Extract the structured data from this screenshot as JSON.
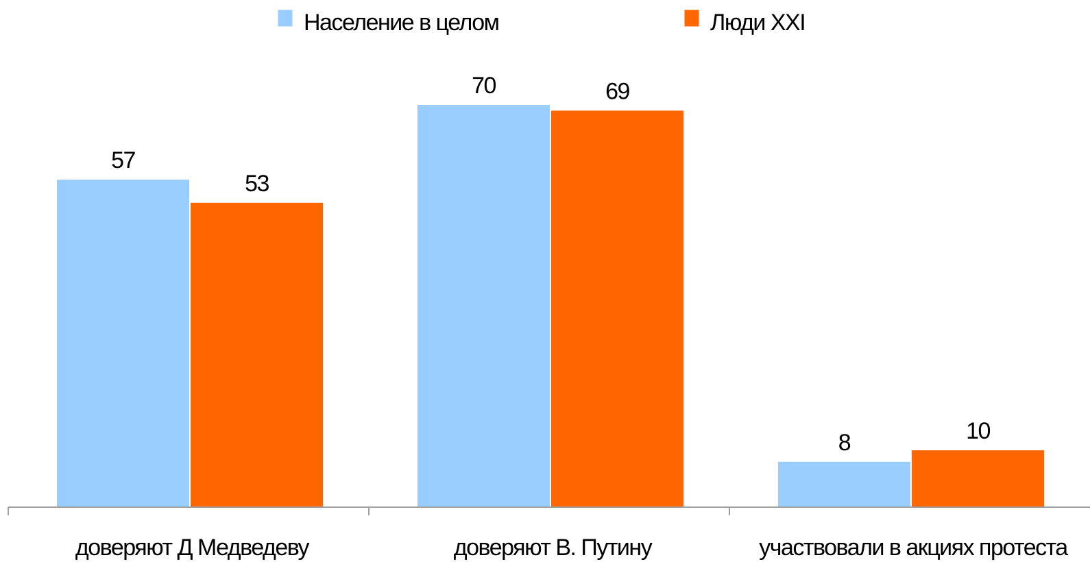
{
  "chart_data": {
    "type": "bar",
    "categories": [
      "доверяют Д Медведеву",
      "доверяют В. Путину",
      "участвовали в акциях протеста"
    ],
    "series": [
      {
        "name": "Население в целом",
        "values": [
          57,
          70,
          8
        ],
        "color": "#99ccff"
      },
      {
        "name": "Люди XXI",
        "values": [
          53,
          69,
          10
        ],
        "color": "#ff6600"
      }
    ],
    "title": "",
    "xlabel": "",
    "ylabel": "",
    "ylim": [
      0,
      70
    ],
    "grid": false,
    "legend_position": "top",
    "data_labels": true
  }
}
